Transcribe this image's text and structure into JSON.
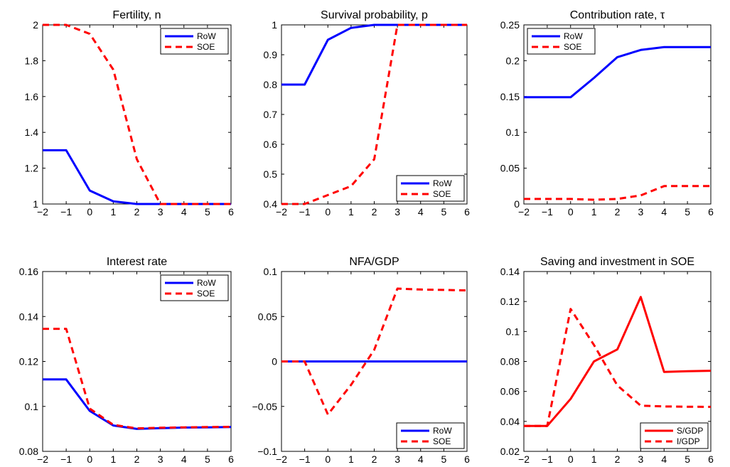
{
  "chart_data": [
    {
      "type": "line",
      "title": "Fertility, n",
      "x": [
        -2,
        -1,
        0,
        1,
        2,
        3,
        4,
        5,
        6
      ],
      "xlim": [
        -2,
        6
      ],
      "ylim": [
        1,
        2
      ],
      "xticks": [
        "−2",
        "−1",
        "0",
        "1",
        "2",
        "3",
        "4",
        "5",
        "6"
      ],
      "yticks": [
        "1",
        "1.2",
        "1.4",
        "1.6",
        "1.8",
        "2"
      ],
      "ytick_values": [
        1,
        1.2,
        1.4,
        1.6,
        1.8,
        2
      ],
      "legend_position": "top-right",
      "series": [
        {
          "name": "RoW",
          "color": "#0000ff",
          "style": "solid",
          "values": [
            1.3,
            1.3,
            1.075,
            1.015,
            1.0,
            1.0,
            1.0,
            1.0,
            1.0
          ]
        },
        {
          "name": "SOE",
          "color": "#ff0000",
          "style": "dashed",
          "values": [
            2.0,
            2.0,
            1.95,
            1.75,
            1.25,
            1.0,
            1.0,
            1.0,
            1.0
          ]
        }
      ]
    },
    {
      "type": "line",
      "title": "Survival probability, p",
      "x": [
        -2,
        -1,
        0,
        1,
        2,
        3,
        4,
        5,
        6
      ],
      "xlim": [
        -2,
        6
      ],
      "ylim": [
        0.4,
        1
      ],
      "xticks": [
        "−2",
        "−1",
        "0",
        "1",
        "2",
        "3",
        "4",
        "5",
        "6"
      ],
      "yticks": [
        "0.4",
        "0.5",
        "0.6",
        "0.7",
        "0.8",
        "0.9",
        "1"
      ],
      "ytick_values": [
        0.4,
        0.5,
        0.6,
        0.7,
        0.8,
        0.9,
        1
      ],
      "legend_position": "bottom-right",
      "series": [
        {
          "name": "RoW",
          "color": "#0000ff",
          "style": "solid",
          "values": [
            0.8,
            0.8,
            0.95,
            0.99,
            1.0,
            1.0,
            1.0,
            1.0,
            1.0
          ]
        },
        {
          "name": "SOE",
          "color": "#ff0000",
          "style": "dashed",
          "values": [
            0.4,
            0.4,
            0.43,
            0.46,
            0.55,
            1.0,
            1.0,
            1.0,
            1.0
          ]
        }
      ]
    },
    {
      "type": "line",
      "title": "Contribution rate, τ",
      "x": [
        -2,
        -1,
        0,
        1,
        2,
        3,
        4,
        5,
        6
      ],
      "xlim": [
        -2,
        6
      ],
      "ylim": [
        0,
        0.25
      ],
      "xticks": [
        "−2",
        "−1",
        "0",
        "1",
        "2",
        "3",
        "4",
        "5",
        "6"
      ],
      "yticks": [
        "0",
        "0.05",
        "0.1",
        "0.15",
        "0.2",
        "0.25"
      ],
      "ytick_values": [
        0,
        0.05,
        0.1,
        0.15,
        0.2,
        0.25
      ],
      "legend_position": "top-left",
      "series": [
        {
          "name": "RoW",
          "color": "#0000ff",
          "style": "solid",
          "values": [
            0.149,
            0.149,
            0.149,
            0.176,
            0.205,
            0.215,
            0.219,
            0.219,
            0.219
          ]
        },
        {
          "name": "SOE",
          "color": "#ff0000",
          "style": "dashed",
          "values": [
            0.007,
            0.007,
            0.007,
            0.006,
            0.007,
            0.012,
            0.025,
            0.025,
            0.025
          ]
        }
      ]
    },
    {
      "type": "line",
      "title": "Interest rate",
      "x": [
        -2,
        -1,
        0,
        1,
        2,
        3,
        4,
        5,
        6
      ],
      "xlim": [
        -2,
        6
      ],
      "ylim": [
        0.08,
        0.16
      ],
      "xticks": [
        "−2",
        "−1",
        "0",
        "1",
        "2",
        "3",
        "4",
        "5",
        "6"
      ],
      "yticks": [
        "0.08",
        "0.1",
        "0.12",
        "0.14",
        "0.16"
      ],
      "ytick_values": [
        0.08,
        0.1,
        0.12,
        0.14,
        0.16
      ],
      "legend_position": "top-right",
      "series": [
        {
          "name": "RoW",
          "color": "#0000ff",
          "style": "solid",
          "values": [
            0.112,
            0.112,
            0.098,
            0.0915,
            0.09,
            0.0903,
            0.0906,
            0.0907,
            0.0908
          ]
        },
        {
          "name": "SOE",
          "color": "#ff0000",
          "style": "dashed",
          "values": [
            0.1345,
            0.1345,
            0.099,
            0.0918,
            0.0902,
            0.0905,
            0.0907,
            0.0908,
            0.0909
          ]
        }
      ]
    },
    {
      "type": "line",
      "title": "NFA/GDP",
      "x": [
        -2,
        -1,
        0,
        1,
        2,
        3,
        4,
        5,
        6
      ],
      "xlim": [
        -2,
        6
      ],
      "ylim": [
        -0.1,
        0.1
      ],
      "xticks": [
        "−2",
        "−1",
        "0",
        "1",
        "2",
        "3",
        "4",
        "5",
        "6"
      ],
      "yticks": [
        "−0.1",
        "−0.05",
        "0",
        "0.05",
        "0.1"
      ],
      "ytick_values": [
        -0.1,
        -0.05,
        0,
        0.05,
        0.1
      ],
      "legend_position": "bottom-right",
      "series": [
        {
          "name": "RoW",
          "color": "#0000ff",
          "style": "solid",
          "values": [
            0,
            0,
            0,
            0,
            0,
            0,
            0,
            0,
            0
          ]
        },
        {
          "name": "SOE",
          "color": "#ff0000",
          "style": "dashed",
          "values": [
            0,
            0,
            -0.059,
            -0.026,
            0.013,
            0.081,
            0.08,
            0.0795,
            0.079
          ]
        }
      ]
    },
    {
      "type": "line",
      "title": "Saving and investment in SOE",
      "x": [
        -2,
        -1,
        0,
        1,
        2,
        3,
        4,
        5,
        6
      ],
      "xlim": [
        -2,
        6
      ],
      "ylim": [
        0.02,
        0.14
      ],
      "xticks": [
        "−2",
        "−1",
        "0",
        "1",
        "2",
        "3",
        "4",
        "5",
        "6"
      ],
      "yticks": [
        "0.02",
        "0.04",
        "0.06",
        "0.08",
        "0.1",
        "0.12",
        "0.14"
      ],
      "ytick_values": [
        0.02,
        0.04,
        0.06,
        0.08,
        0.1,
        0.12,
        0.14
      ],
      "legend_position": "bottom-right",
      "series": [
        {
          "name": "S/GDP",
          "color": "#ff0000",
          "style": "solid",
          "values": [
            0.037,
            0.037,
            0.055,
            0.08,
            0.088,
            0.123,
            0.073,
            0.0735,
            0.0738
          ]
        },
        {
          "name": "I/GDP",
          "color": "#ff0000",
          "style": "dashed",
          "values": [
            0.037,
            0.037,
            0.115,
            0.091,
            0.064,
            0.0505,
            0.05,
            0.0498,
            0.0497
          ]
        }
      ]
    }
  ]
}
